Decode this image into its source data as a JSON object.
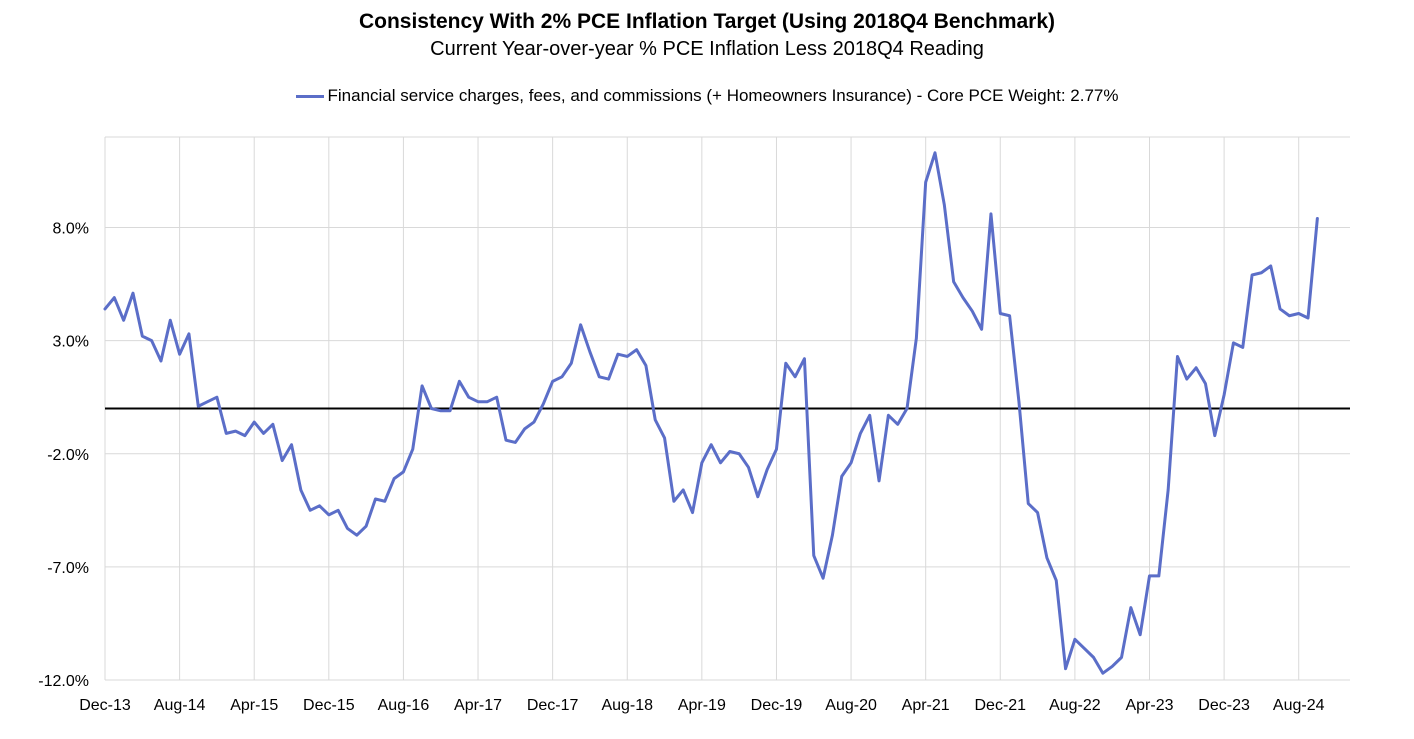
{
  "chart_data": {
    "type": "line",
    "title": "Consistency With 2% PCE Inflation Target (Using 2018Q4 Benchmark)",
    "subtitle": "Current Year-over-year % PCE Inflation Less 2018Q4 Reading",
    "xlabel": "",
    "ylabel": "",
    "ylim": [
      -12,
      12
    ],
    "yticks": [
      -12,
      -7,
      -2,
      3,
      8
    ],
    "ytick_labels": [
      "-12.0%",
      "-7.0%",
      "-2.0%",
      "3.0%",
      "8.0%"
    ],
    "grid": true,
    "legend_position": "top-center",
    "x_start": "Dec-13",
    "x_end": "Jan-25",
    "x_ticks": [
      "Dec-13",
      "Aug-14",
      "Apr-15",
      "Dec-15",
      "Aug-16",
      "Apr-17",
      "Dec-17",
      "Aug-18",
      "Apr-19",
      "Dec-19",
      "Aug-20",
      "Apr-21",
      "Dec-21",
      "Aug-22",
      "Apr-23",
      "Dec-23",
      "Aug-24"
    ],
    "series": [
      {
        "name": "Financial service charges, fees, and commissions (+ Homeowners Insurance) - Core PCE Weight: 2.77%",
        "color": "#5b6ec8",
        "values": [
          4.4,
          4.9,
          3.9,
          5.1,
          3.2,
          3.0,
          2.1,
          3.9,
          2.4,
          3.3,
          0.1,
          0.3,
          0.5,
          -1.1,
          -1.0,
          -1.2,
          -0.6,
          -1.1,
          -0.7,
          -2.3,
          -1.6,
          -3.6,
          -4.5,
          -4.3,
          -4.7,
          -4.5,
          -5.3,
          -5.6,
          -5.2,
          -4.0,
          -4.1,
          -3.1,
          -2.8,
          -1.8,
          1.0,
          0.0,
          -0.1,
          -0.1,
          1.2,
          0.5,
          0.3,
          0.3,
          0.5,
          -1.4,
          -1.5,
          -0.9,
          -0.6,
          0.2,
          1.2,
          1.4,
          2.0,
          3.7,
          2.5,
          1.4,
          1.3,
          2.4,
          2.3,
          2.6,
          1.9,
          -0.5,
          -1.3,
          -4.1,
          -3.6,
          -4.6,
          -2.4,
          -1.6,
          -2.4,
          -1.9,
          -2.0,
          -2.6,
          -3.9,
          -2.7,
          -1.8,
          2.0,
          1.4,
          2.2,
          -6.5,
          -7.5,
          -5.6,
          -3.0,
          -2.4,
          -1.1,
          -0.3,
          -3.2,
          -0.3,
          -0.7,
          0.0,
          3.1,
          10.0,
          11.3,
          9.0,
          5.6,
          4.9,
          4.3,
          3.5,
          8.6,
          4.2,
          4.1,
          0.3,
          -4.2,
          -4.6,
          -6.6,
          -7.6,
          -11.5,
          -10.2,
          -10.6,
          -11.0,
          -11.7,
          -11.4,
          -11.0,
          -8.8,
          -10.0,
          -7.4,
          -7.4,
          -3.6,
          2.3,
          1.3,
          1.8,
          1.1,
          -1.2,
          0.6,
          2.9,
          2.7,
          5.9,
          6.0,
          6.3,
          4.4,
          4.1,
          4.2,
          4.0,
          8.4
        ]
      }
    ]
  }
}
